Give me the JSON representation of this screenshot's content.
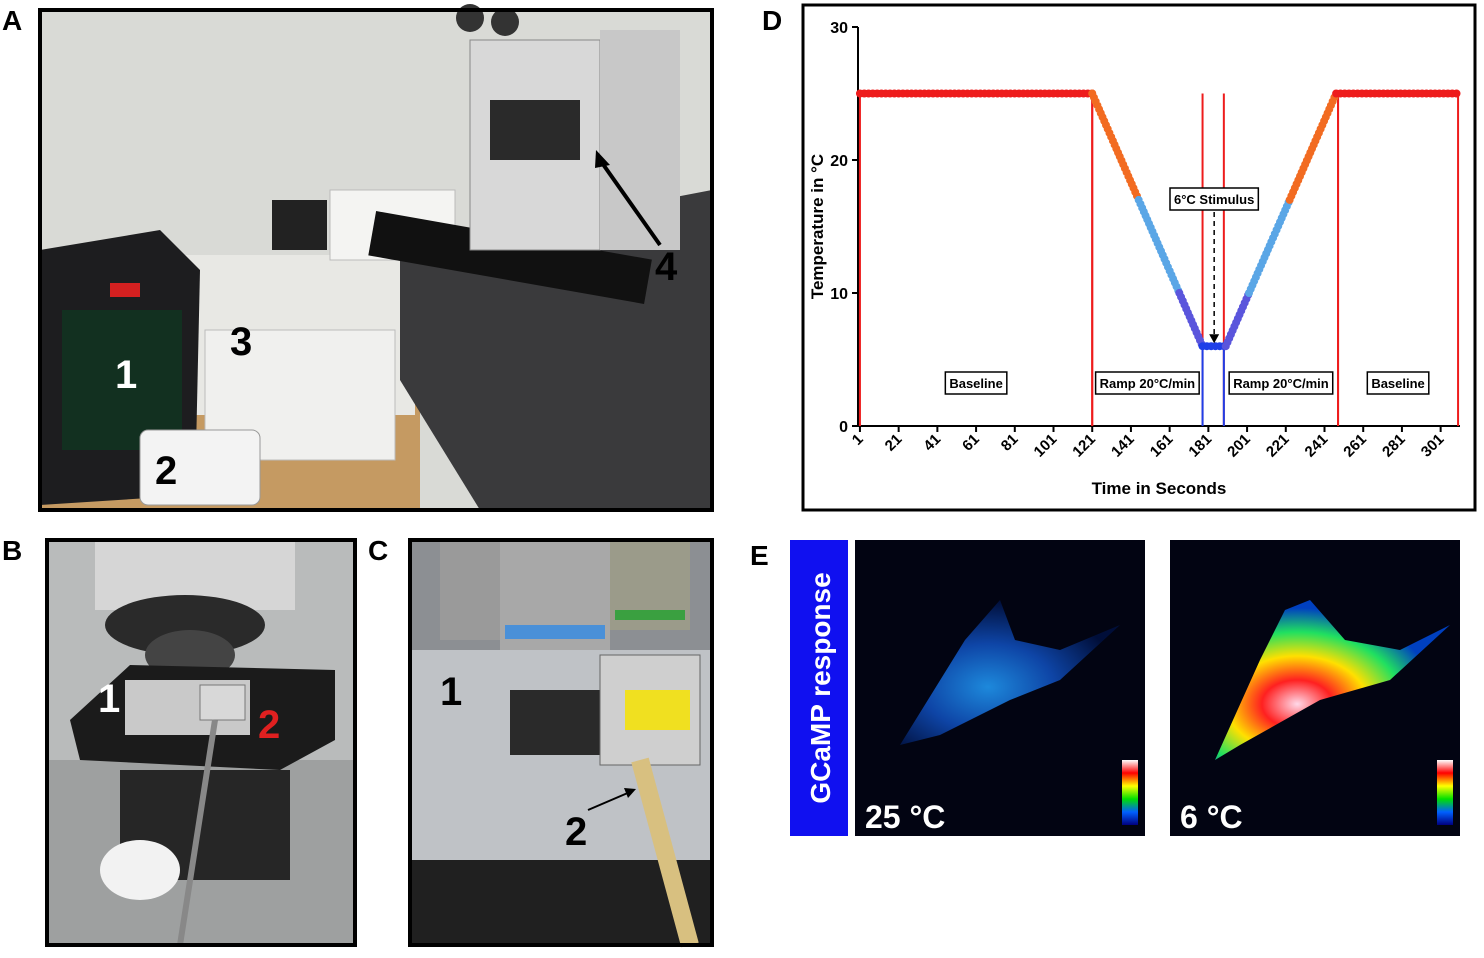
{
  "panels": {
    "A": {
      "label": "A",
      "markers": [
        "1",
        "2",
        "3",
        "4"
      ]
    },
    "B": {
      "label": "B",
      "markers": [
        "1",
        "2"
      ]
    },
    "C": {
      "label": "C",
      "markers": [
        "1",
        "2"
      ]
    },
    "D": {
      "label": "D"
    },
    "E": {
      "label": "E",
      "side_label": "GCaMP response",
      "captions": [
        "25 °C",
        "6 °C"
      ]
    }
  },
  "chart_data": {
    "type": "line",
    "x_label": "Time in Seconds",
    "y_label": "Temperature in °C",
    "xlim": [
      0,
      311
    ],
    "ylim": [
      0,
      30
    ],
    "xticks": [
      1,
      21,
      41,
      61,
      81,
      101,
      121,
      141,
      161,
      181,
      201,
      221,
      241,
      261,
      281,
      301
    ],
    "yticks": [
      0,
      10,
      20,
      30
    ],
    "series": [
      {
        "color": "#ee1c1c",
        "x": [
          1,
          121
        ],
        "values": [
          25,
          25
        ]
      },
      {
        "color": "#f26b21",
        "x": [
          121,
          145
        ],
        "values": [
          25,
          17
        ]
      },
      {
        "color": "#5aa6e6",
        "x": [
          145,
          166
        ],
        "values": [
          17,
          10
        ]
      },
      {
        "color": "#5a55dc",
        "x": [
          166,
          178
        ],
        "values": [
          10,
          6
        ]
      },
      {
        "color": "#1f3fe8",
        "x": [
          178,
          190
        ],
        "values": [
          6,
          6
        ]
      },
      {
        "color": "#5a55dc",
        "x": [
          190,
          202
        ],
        "values": [
          6,
          10
        ]
      },
      {
        "color": "#5aa6e6",
        "x": [
          202,
          223
        ],
        "values": [
          10,
          17
        ]
      },
      {
        "color": "#f26b21",
        "x": [
          223,
          247
        ],
        "values": [
          17,
          25
        ]
      },
      {
        "color": "#ee1c1c",
        "x": [
          247,
          310
        ],
        "values": [
          25,
          25
        ]
      }
    ],
    "regions": [
      {
        "label": "Baseline",
        "x": [
          1,
          121
        ],
        "height": 25,
        "color": "#ee1c1c"
      },
      {
        "label": "Ramp 20°C/min",
        "x": [
          121,
          178
        ],
        "height": 25,
        "color": "#ee1c1c"
      },
      {
        "label": "Ramp 20°C/min",
        "x": [
          189,
          248
        ],
        "height": 25,
        "color": "#ee1c1c"
      },
      {
        "label": "Baseline",
        "x": [
          248,
          310
        ],
        "height": 25,
        "color": "#ee1c1c"
      },
      {
        "x": [
          178,
          189
        ],
        "height": 6,
        "color": "#1f3fe8"
      }
    ],
    "annotation": {
      "text": "6°C Stimulus",
      "x": 184,
      "y": 6
    }
  }
}
